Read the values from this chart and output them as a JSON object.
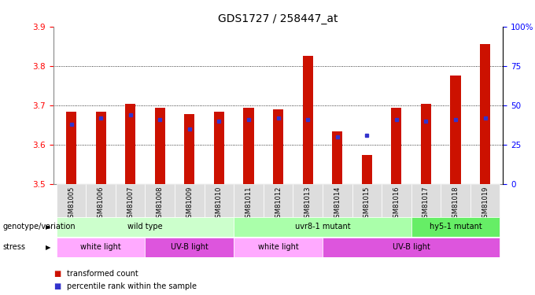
{
  "title": "GDS1727 / 258447_at",
  "samples": [
    "GSM81005",
    "GSM81006",
    "GSM81007",
    "GSM81008",
    "GSM81009",
    "GSM81010",
    "GSM81011",
    "GSM81012",
    "GSM81013",
    "GSM81014",
    "GSM81015",
    "GSM81016",
    "GSM81017",
    "GSM81018",
    "GSM81019"
  ],
  "red_values": [
    3.685,
    3.685,
    3.705,
    3.695,
    3.678,
    3.685,
    3.695,
    3.69,
    3.825,
    3.635,
    3.575,
    3.695,
    3.705,
    3.775,
    3.855
  ],
  "blue_values": [
    0.38,
    0.42,
    0.44,
    0.41,
    0.35,
    0.4,
    0.41,
    0.42,
    0.41,
    0.3,
    0.31,
    0.41,
    0.4,
    0.41,
    0.42
  ],
  "ymin": 3.5,
  "ymax": 3.9,
  "y_ticks_left": [
    3.5,
    3.6,
    3.7,
    3.8,
    3.9
  ],
  "y_ticks_right": [
    0,
    25,
    50,
    75,
    100
  ],
  "right_tick_labels": [
    "0",
    "25",
    "50",
    "75",
    "100%"
  ],
  "bar_color": "#cc1100",
  "blue_color": "#3333cc",
  "bar_width": 0.35,
  "genotype_groups": [
    {
      "label": "wild type",
      "start": 0,
      "end": 6,
      "color": "#ccffcc"
    },
    {
      "label": "uvr8-1 mutant",
      "start": 6,
      "end": 12,
      "color": "#aaffaa"
    },
    {
      "label": "hy5-1 mutant",
      "start": 12,
      "end": 15,
      "color": "#66ee66"
    }
  ],
  "stress_groups": [
    {
      "label": "white light",
      "start": 0,
      "end": 3,
      "color": "#ffaaff"
    },
    {
      "label": "UV-B light",
      "start": 3,
      "end": 6,
      "color": "#dd55dd"
    },
    {
      "label": "white light",
      "start": 6,
      "end": 9,
      "color": "#ffaaff"
    },
    {
      "label": "UV-B light",
      "start": 9,
      "end": 15,
      "color": "#dd55dd"
    }
  ],
  "legend_items": [
    {
      "color": "#cc1100",
      "label": "transformed count"
    },
    {
      "color": "#3333cc",
      "label": "percentile rank within the sample"
    }
  ],
  "background_color": "#ffffff",
  "title_fontsize": 10,
  "tick_fontsize": 7.5,
  "label_fontsize": 7.5
}
